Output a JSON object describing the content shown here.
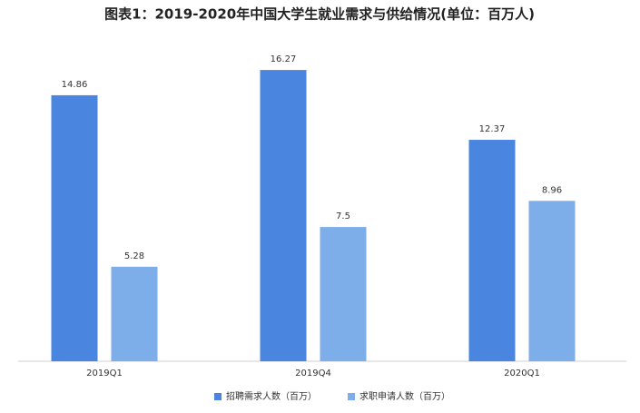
{
  "chart_data": {
    "type": "bar",
    "title": "图表1：2019-2020年中国大学生就业需求与供给情况(单位：百万人)",
    "categories": [
      "2019Q1",
      "2019Q4",
      "2020Q1"
    ],
    "series": [
      {
        "name": "招聘需求人数（百万）",
        "color": "#4a86e0",
        "values": [
          14.86,
          16.27,
          12.37
        ]
      },
      {
        "name": "求职申请人数（百万）",
        "color": "#7eaee9",
        "values": [
          5.28,
          7.5,
          8.96
        ]
      }
    ],
    "ylim": [
      0,
      18
    ],
    "legend": "bottom"
  }
}
